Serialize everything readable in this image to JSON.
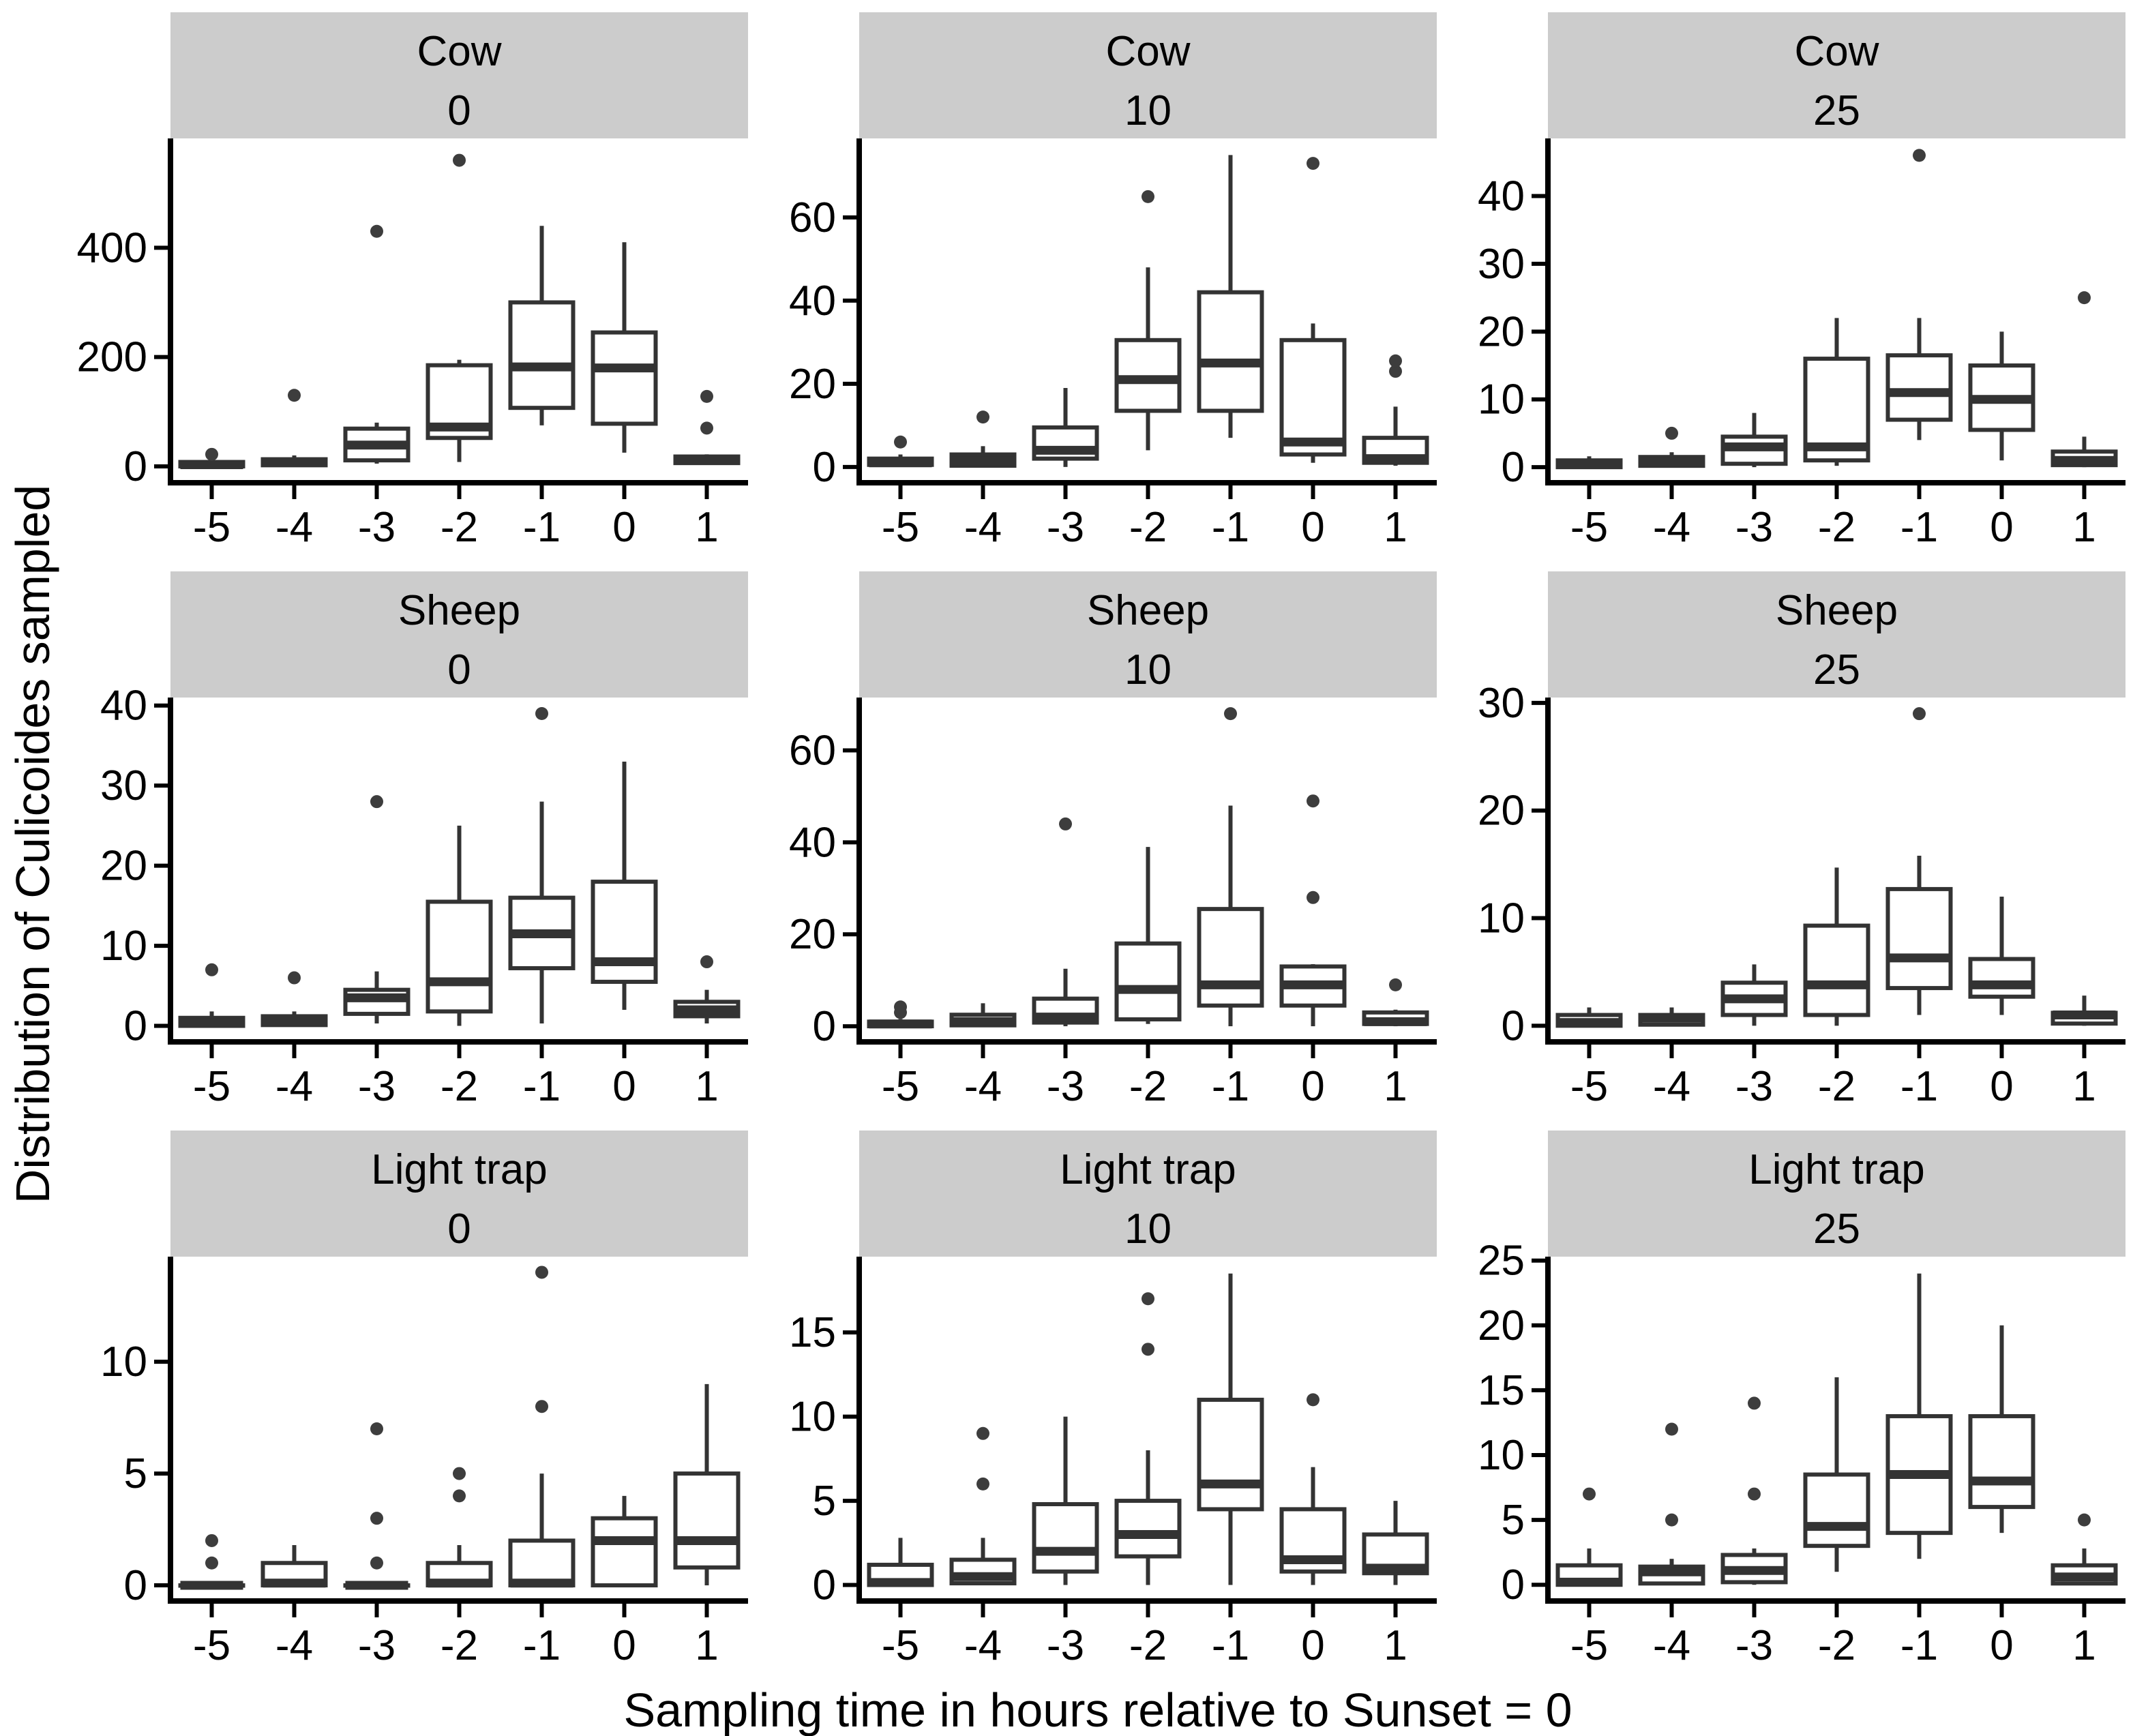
{
  "figure": {
    "x_axis_title": "Sampling time in hours relative to Sunset = 0",
    "y_axis_title": "Distribution of Culicoides sampled"
  },
  "colors": {
    "strip_bg": "#cccccc",
    "box_stroke": "#333333",
    "median": "#333333",
    "outlier": "#3d3d3d",
    "axis": "#000000",
    "text": "#000000",
    "box_fill": "#ffffff"
  },
  "chart_data": {
    "type": "boxplot",
    "facet_rows": [
      "Cow",
      "Sheep",
      "Light trap"
    ],
    "facet_cols": [
      "0",
      "10",
      "25"
    ],
    "x_categories": [
      "-5",
      "-4",
      "-3",
      "-2",
      "-1",
      "0",
      "1"
    ],
    "xlabel": "Sampling time in hours relative to Sunset = 0",
    "ylabel": "Distribution of Culicoides sampled",
    "legend": "none",
    "grid": false,
    "panels": [
      {
        "facet_row": "Cow",
        "facet_col": "0",
        "ylim": [
          -30,
          600
        ],
        "yticks": [
          0,
          200,
          400
        ],
        "boxes": [
          {
            "x": "-5",
            "lo": 0,
            "q1": 0,
            "med": 3,
            "q3": 8,
            "hi": 14,
            "out": [
              22
            ]
          },
          {
            "x": "-4",
            "lo": 0,
            "q1": 2,
            "med": 8,
            "q3": 13,
            "hi": 20,
            "out": [
              130
            ]
          },
          {
            "x": "-3",
            "lo": 5,
            "q1": 11,
            "med": 39,
            "q3": 69,
            "hi": 80,
            "out": [
              430
            ]
          },
          {
            "x": "-2",
            "lo": 8,
            "q1": 52,
            "med": 72,
            "q3": 185,
            "hi": 195,
            "out": [
              560
            ]
          },
          {
            "x": "-1",
            "lo": 75,
            "q1": 107,
            "med": 182,
            "q3": 300,
            "hi": 440,
            "out": []
          },
          {
            "x": "0",
            "lo": 25,
            "q1": 78,
            "med": 180,
            "q3": 245,
            "hi": 410,
            "out": []
          },
          {
            "x": "1",
            "lo": 3,
            "q1": 6,
            "med": 12,
            "q3": 18,
            "hi": 22,
            "out": [
              70,
              128
            ]
          }
        ]
      },
      {
        "facet_row": "Cow",
        "facet_col": "10",
        "ylim": [
          -3.8,
          79
        ],
        "yticks": [
          0,
          20,
          40,
          60
        ],
        "boxes": [
          {
            "x": "-5",
            "lo": 0,
            "q1": 0.5,
            "med": 1,
            "q3": 2,
            "hi": 3,
            "out": [
              6
            ]
          },
          {
            "x": "-4",
            "lo": 0,
            "q1": 0.3,
            "med": 1.5,
            "q3": 3,
            "hi": 5,
            "out": [
              12
            ]
          },
          {
            "x": "-3",
            "lo": 0,
            "q1": 2,
            "med": 4,
            "q3": 9.5,
            "hi": 19,
            "out": []
          },
          {
            "x": "-2",
            "lo": 4,
            "q1": 13.5,
            "med": 21,
            "q3": 30.5,
            "hi": 48,
            "out": [
              65
            ]
          },
          {
            "x": "-1",
            "lo": 7,
            "q1": 13.5,
            "med": 25,
            "q3": 42,
            "hi": 75,
            "out": []
          },
          {
            "x": "0",
            "lo": 1,
            "q1": 3,
            "med": 6,
            "q3": 30.5,
            "hi": 34.5,
            "out": [
              73
            ]
          },
          {
            "x": "1",
            "lo": 0.3,
            "q1": 1,
            "med": 2,
            "q3": 7,
            "hi": 14.5,
            "out": [
              23,
              25.5
            ]
          }
        ]
      },
      {
        "facet_row": "Cow",
        "facet_col": "25",
        "ylim": [
          -2.3,
          48.5
        ],
        "yticks": [
          0,
          10,
          20,
          30,
          40
        ],
        "boxes": [
          {
            "x": "-5",
            "lo": 0,
            "q1": 0,
            "med": 0.5,
            "q3": 1,
            "hi": 1.6,
            "out": []
          },
          {
            "x": "-4",
            "lo": 0,
            "q1": 0.2,
            "med": 0.8,
            "q3": 1.5,
            "hi": 2.2,
            "out": [
              5
            ]
          },
          {
            "x": "-3",
            "lo": 0,
            "q1": 0.5,
            "med": 3,
            "q3": 4.5,
            "hi": 8,
            "out": []
          },
          {
            "x": "-2",
            "lo": 0.2,
            "q1": 1,
            "med": 3,
            "q3": 16,
            "hi": 22,
            "out": []
          },
          {
            "x": "-1",
            "lo": 4,
            "q1": 7,
            "med": 11,
            "q3": 16.5,
            "hi": 22,
            "out": [
              46
            ]
          },
          {
            "x": "0",
            "lo": 1,
            "q1": 5.5,
            "med": 10,
            "q3": 15,
            "hi": 20,
            "out": []
          },
          {
            "x": "1",
            "lo": 0,
            "q1": 0.3,
            "med": 1,
            "q3": 2.3,
            "hi": 4.5,
            "out": [
              25
            ]
          }
        ]
      },
      {
        "facet_row": "Sheep",
        "facet_col": "0",
        "ylim": [
          -2,
          41
        ],
        "yticks": [
          0,
          10,
          20,
          30,
          40
        ],
        "boxes": [
          {
            "x": "-5",
            "lo": 0,
            "q1": 0,
            "med": 0.4,
            "q3": 1,
            "hi": 1.8,
            "out": [
              7
            ]
          },
          {
            "x": "-4",
            "lo": 0,
            "q1": 0.1,
            "med": 0.6,
            "q3": 1.2,
            "hi": 1.8,
            "out": [
              6
            ]
          },
          {
            "x": "-3",
            "lo": 0.3,
            "q1": 1.5,
            "med": 3.5,
            "q3": 4.5,
            "hi": 6.8,
            "out": [
              28
            ]
          },
          {
            "x": "-2",
            "lo": 0,
            "q1": 1.8,
            "med": 5.5,
            "q3": 15.5,
            "hi": 25,
            "out": []
          },
          {
            "x": "-1",
            "lo": 0.3,
            "q1": 7.2,
            "med": 11.5,
            "q3": 16,
            "hi": 28,
            "out": [
              39
            ]
          },
          {
            "x": "0",
            "lo": 2,
            "q1": 5.5,
            "med": 8,
            "q3": 18,
            "hi": 33,
            "out": []
          },
          {
            "x": "1",
            "lo": 0.3,
            "q1": 1.2,
            "med": 2,
            "q3": 3,
            "hi": 4.5,
            "out": [
              8
            ]
          }
        ]
      },
      {
        "facet_row": "Sheep",
        "facet_col": "10",
        "ylim": [
          -3.4,
          71.5
        ],
        "yticks": [
          0,
          20,
          40,
          60
        ],
        "boxes": [
          {
            "x": "-5",
            "lo": 0,
            "q1": 0,
            "med": 0.5,
            "q3": 1,
            "hi": 1.6,
            "out": [
              3,
              4.2
            ]
          },
          {
            "x": "-4",
            "lo": 0,
            "q1": 0.2,
            "med": 1,
            "q3": 2.5,
            "hi": 5,
            "out": []
          },
          {
            "x": "-3",
            "lo": 0,
            "q1": 0.8,
            "med": 2,
            "q3": 6,
            "hi": 12.5,
            "out": [
              44
            ]
          },
          {
            "x": "-2",
            "lo": 0.5,
            "q1": 1.5,
            "med": 8,
            "q3": 18,
            "hi": 39,
            "out": []
          },
          {
            "x": "-1",
            "lo": 0,
            "q1": 4.5,
            "med": 9,
            "q3": 25.5,
            "hi": 48,
            "out": [
              68
            ]
          },
          {
            "x": "0",
            "lo": 0,
            "q1": 4.5,
            "med": 9,
            "q3": 13,
            "hi": 13.5,
            "out": [
              28,
              49
            ]
          },
          {
            "x": "1",
            "lo": 0,
            "q1": 0.5,
            "med": 1,
            "q3": 3,
            "hi": 3.6,
            "out": [
              9
            ]
          }
        ]
      },
      {
        "facet_row": "Sheep",
        "facet_col": "25",
        "ylim": [
          -1.5,
          30.5
        ],
        "yticks": [
          0,
          10,
          20,
          30
        ],
        "boxes": [
          {
            "x": "-5",
            "lo": 0,
            "q1": 0,
            "med": 0.3,
            "q3": 1,
            "hi": 1.7,
            "out": []
          },
          {
            "x": "-4",
            "lo": 0,
            "q1": 0.1,
            "med": 0.7,
            "q3": 1,
            "hi": 1.7,
            "out": []
          },
          {
            "x": "-3",
            "lo": 0,
            "q1": 1,
            "med": 2.5,
            "q3": 4,
            "hi": 5.7,
            "out": []
          },
          {
            "x": "-2",
            "lo": 0,
            "q1": 1,
            "med": 3.8,
            "q3": 9.3,
            "hi": 14.7,
            "out": []
          },
          {
            "x": "-1",
            "lo": 1,
            "q1": 3.5,
            "med": 6.3,
            "q3": 12.7,
            "hi": 15.8,
            "out": [
              29
            ]
          },
          {
            "x": "0",
            "lo": 1,
            "q1": 2.7,
            "med": 3.8,
            "q3": 6.2,
            "hi": 12,
            "out": []
          },
          {
            "x": "1",
            "lo": 0,
            "q1": 0.2,
            "med": 1,
            "q3": 1.2,
            "hi": 2.8,
            "out": []
          }
        ]
      },
      {
        "facet_row": "Light trap",
        "facet_col": "0",
        "ylim": [
          -0.7,
          14.7
        ],
        "yticks": [
          0,
          5,
          10
        ],
        "boxes": [
          {
            "x": "-5",
            "lo": 0,
            "q1": 0,
            "med": 0,
            "q3": 0,
            "hi": 0,
            "out": [
              1,
              2
            ]
          },
          {
            "x": "-4",
            "lo": 0,
            "q1": 0,
            "med": 0.1,
            "q3": 1,
            "hi": 1.8,
            "out": []
          },
          {
            "x": "-3",
            "lo": 0,
            "q1": 0,
            "med": 0,
            "q3": 0,
            "hi": 0,
            "out": [
              1,
              3,
              7
            ]
          },
          {
            "x": "-2",
            "lo": 0,
            "q1": 0,
            "med": 0.1,
            "q3": 1,
            "hi": 1.8,
            "out": [
              4,
              5
            ]
          },
          {
            "x": "-1",
            "lo": 0,
            "q1": 0,
            "med": 0.1,
            "q3": 2,
            "hi": 5,
            "out": [
              8,
              14
            ]
          },
          {
            "x": "0",
            "lo": 0,
            "q1": 0,
            "med": 2,
            "q3": 3,
            "hi": 4,
            "out": []
          },
          {
            "x": "1",
            "lo": 0,
            "q1": 0.8,
            "med": 2,
            "q3": 5,
            "hi": 9,
            "out": []
          }
        ]
      },
      {
        "facet_row": "Light trap",
        "facet_col": "10",
        "ylim": [
          -0.95,
          19.5
        ],
        "yticks": [
          0,
          5,
          10,
          15
        ],
        "boxes": [
          {
            "x": "-5",
            "lo": 0,
            "q1": 0,
            "med": 0.15,
            "q3": 1.2,
            "hi": 2.8,
            "out": []
          },
          {
            "x": "-4",
            "lo": 0,
            "q1": 0.1,
            "med": 0.5,
            "q3": 1.5,
            "hi": 2.8,
            "out": [
              6,
              9
            ]
          },
          {
            "x": "-3",
            "lo": 0,
            "q1": 0.8,
            "med": 2,
            "q3": 4.8,
            "hi": 10,
            "out": []
          },
          {
            "x": "-2",
            "lo": 0,
            "q1": 1.7,
            "med": 3,
            "q3": 5,
            "hi": 8,
            "out": [
              14,
              17
            ]
          },
          {
            "x": "-1",
            "lo": 0,
            "q1": 4.5,
            "med": 6,
            "q3": 11,
            "hi": 18.5,
            "out": []
          },
          {
            "x": "0",
            "lo": 0,
            "q1": 0.8,
            "med": 1.5,
            "q3": 4.5,
            "hi": 7,
            "out": [
              11
            ]
          },
          {
            "x": "1",
            "lo": 0,
            "q1": 0.7,
            "med": 1,
            "q3": 3,
            "hi": 5,
            "out": []
          }
        ]
      },
      {
        "facet_row": "Light trap",
        "facet_col": "25",
        "ylim": [
          -1.25,
          25.3
        ],
        "yticks": [
          0,
          5,
          10,
          15,
          20,
          25
        ],
        "boxes": [
          {
            "x": "-5",
            "lo": 0,
            "q1": 0,
            "med": 0.2,
            "q3": 1.5,
            "hi": 2.8,
            "out": [
              7
            ]
          },
          {
            "x": "-4",
            "lo": 0,
            "q1": 0.1,
            "med": 1,
            "q3": 1.4,
            "hi": 2,
            "out": [
              5,
              12
            ]
          },
          {
            "x": "-3",
            "lo": 0,
            "q1": 0.2,
            "med": 1.1,
            "q3": 2.3,
            "hi": 2.8,
            "out": [
              7,
              14
            ]
          },
          {
            "x": "-2",
            "lo": 1,
            "q1": 3,
            "med": 4.5,
            "q3": 8.5,
            "hi": 16,
            "out": []
          },
          {
            "x": "-1",
            "lo": 2,
            "q1": 4,
            "med": 8.5,
            "q3": 13,
            "hi": 24,
            "out": []
          },
          {
            "x": "0",
            "lo": 4,
            "q1": 6,
            "med": 8,
            "q3": 13,
            "hi": 20,
            "out": []
          },
          {
            "x": "1",
            "lo": 0,
            "q1": 0.1,
            "med": 0.6,
            "q3": 1.5,
            "hi": 2.8,
            "out": [
              5
            ]
          }
        ]
      }
    ]
  }
}
